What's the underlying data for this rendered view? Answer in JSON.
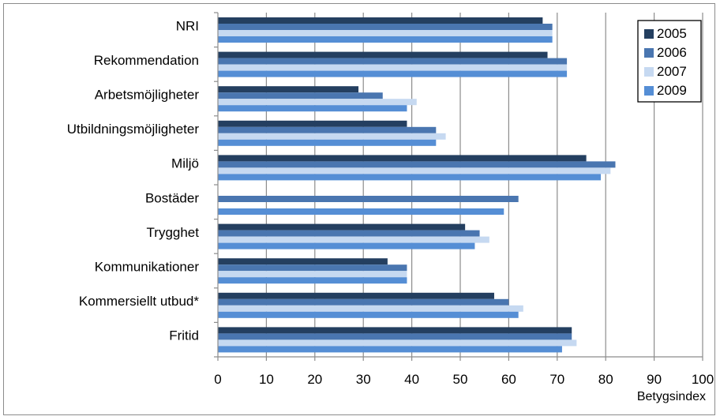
{
  "chart_data": {
    "type": "bar",
    "orientation": "horizontal",
    "title": "",
    "xlabel": "Betygsindex",
    "ylabel": "",
    "xlim": [
      0,
      100
    ],
    "xticks": [
      "0",
      "10",
      "20",
      "30",
      "40",
      "50",
      "60",
      "70",
      "80",
      "90",
      "100"
    ],
    "grid": "vertical",
    "legend_position": "top-right",
    "categories": [
      "NRI",
      "Rekommendation",
      "Arbetsmöjligheter",
      "Utbildningsmöjligheter",
      "Miljö",
      "Bostäder",
      "Trygghet",
      "Kommunikationer",
      "Kommersiellt utbud*",
      "Fritid"
    ],
    "series": [
      {
        "name": "2005",
        "color": "#243f60",
        "values": [
          67,
          68,
          29,
          39,
          76,
          null,
          51,
          35,
          57,
          73
        ]
      },
      {
        "name": "2006",
        "color": "#4a76b0",
        "values": [
          69,
          72,
          34,
          45,
          82,
          62,
          54,
          39,
          60,
          73
        ]
      },
      {
        "name": "2007",
        "color": "#c6d9f1",
        "values": [
          69,
          72,
          41,
          47,
          81,
          null,
          56,
          39,
          63,
          74
        ]
      },
      {
        "name": "2009",
        "color": "#558ed5",
        "values": [
          69,
          72,
          39,
          45,
          79,
          59,
          53,
          39,
          62,
          71
        ]
      }
    ]
  }
}
